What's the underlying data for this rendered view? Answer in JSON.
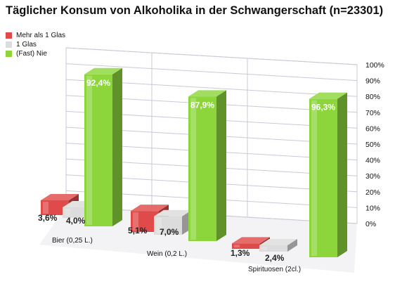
{
  "title": "Täglicher Konsum von Alkoholika in der Schwangerschaft (n=23301)",
  "legend": [
    {
      "label": "Mehr als 1 Glas",
      "color": "#e04a4a"
    },
    {
      "label": "1 Glas",
      "color": "#dcdcdc"
    },
    {
      "label": "(Fast) Nie",
      "color": "#8cd63c"
    }
  ],
  "chart_data": {
    "type": "bar",
    "title": "Täglicher Konsum von Alkoholika in der Schwangerschaft (n=23301)",
    "categories": [
      "Bier (0,25 L.)",
      "Wein (0,2 L.)",
      "Spirituosen (2cl.)"
    ],
    "series": [
      {
        "name": "Mehr als 1 Glas",
        "values": [
          3.6,
          5.1,
          1.3
        ],
        "labels": [
          "3,6%",
          "5,1%",
          "1,3%"
        ],
        "color": "#e04a4a"
      },
      {
        "name": "1 Glas",
        "values": [
          4.0,
          7.0,
          2.4
        ],
        "labels": [
          "4,0%",
          "7,0%",
          "2,4%"
        ],
        "color": "#dcdcdc"
      },
      {
        "name": "(Fast) Nie",
        "values": [
          92.4,
          87.9,
          96.3
        ],
        "labels": [
          "92,4%",
          "87,9%",
          "96,3%"
        ],
        "color": "#8cd63c"
      }
    ],
    "ylim": [
      0,
      100
    ],
    "yticks": [
      "0%",
      "10%",
      "20%",
      "30%",
      "40%",
      "50%",
      "60%",
      "70%",
      "80%",
      "90%",
      "100%"
    ],
    "grid": true,
    "legend_position": "top-left",
    "three_d": true
  }
}
